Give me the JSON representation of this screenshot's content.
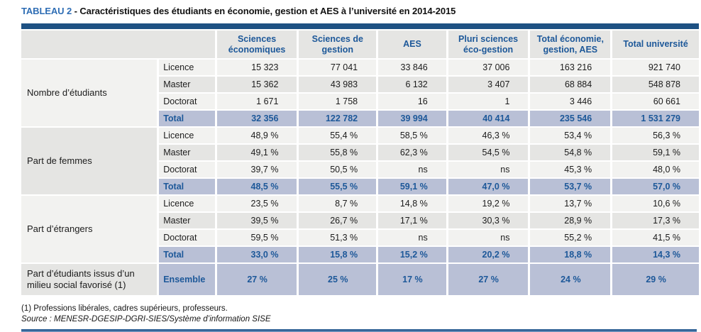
{
  "title": {
    "label": "TABLEAU 2",
    "text": "- Caractéristiques des étudiants en économie, gestion et AES à l’université en 2014-2015"
  },
  "table": {
    "column_headers": [
      "Sciences économiques",
      "Sciences de gestion",
      "AES",
      "Pluri sciences éco-gestion",
      "Total économie, gestion, AES",
      "Total université"
    ],
    "groups": [
      {
        "label": "Nombre d’étudiants",
        "rows": [
          {
            "label": "Licence",
            "total": false,
            "values": [
              "15 323",
              "77 041",
              "33 846",
              "37 006",
              "163 216",
              "921 740"
            ]
          },
          {
            "label": "Master",
            "total": false,
            "values": [
              "15 362",
              "43 983",
              "6 132",
              "3 407",
              "68 884",
              "548 878"
            ]
          },
          {
            "label": "Doctorat",
            "total": false,
            "values": [
              "1 671",
              "1 758",
              "16",
              "1",
              "3 446",
              "60 661"
            ]
          },
          {
            "label": "Total",
            "total": true,
            "values": [
              "32 356",
              "122 782",
              "39 994",
              "40 414",
              "235 546",
              "1 531 279"
            ]
          }
        ]
      },
      {
        "label": "Part de femmes",
        "rows": [
          {
            "label": "Licence",
            "total": false,
            "values": [
              "48,9 %",
              "55,4 %",
              "58,5 %",
              "46,3 %",
              "53,4 %",
              "56,3 %"
            ]
          },
          {
            "label": "Master",
            "total": false,
            "values": [
              "49,1 %",
              "55,8 %",
              "62,3 %",
              "54,5 %",
              "54,8 %",
              "59,1 %"
            ]
          },
          {
            "label": "Doctorat",
            "total": false,
            "values": [
              "39,7 %",
              "50,5 %",
              "ns",
              "ns",
              "45,3 %",
              "48,0 %"
            ]
          },
          {
            "label": "Total",
            "total": true,
            "values": [
              "48,5 %",
              "55,5 %",
              "59,1 %",
              "47,0 %",
              "53,7 %",
              "57,0 %"
            ]
          }
        ]
      },
      {
        "label": "Part d’étrangers",
        "rows": [
          {
            "label": "Licence",
            "total": false,
            "values": [
              "23,5 %",
              "8,7 %",
              "14,8 %",
              "19,2 %",
              "13,7 %",
              "10,6 %"
            ]
          },
          {
            "label": "Master",
            "total": false,
            "values": [
              "39,5 %",
              "26,7 %",
              "17,1 %",
              "30,3 %",
              "28,9 %",
              "17,3 %"
            ]
          },
          {
            "label": "Doctorat",
            "total": false,
            "values": [
              "59,5 %",
              "51,3 %",
              "ns",
              "ns",
              "55,2 %",
              "41,5 %"
            ]
          },
          {
            "label": "Total",
            "total": true,
            "values": [
              "33,0 %",
              "15,8 %",
              "15,2 %",
              "20,2 %",
              "18,8 %",
              "14,3 %"
            ]
          }
        ]
      },
      {
        "label": "Part d’étudiants issus d’un milieu social favorisé (1)",
        "rows": [
          {
            "label": "Ensemble",
            "total": true,
            "values": [
              "27 %",
              "25 %",
              "17 %",
              "27 %",
              "24 %",
              "29 %"
            ]
          }
        ]
      }
    ]
  },
  "footnotes": {
    "note1": "(1) Professions libérales, cadres supérieurs, professeurs.",
    "source": "Source : MENESR-DGESIP-DGRI-SIES/Système d’information SISE"
  },
  "colors": {
    "navy_bar": "#1e5183",
    "header_text_blue": "#1d5899",
    "title_blue": "#2e6db4",
    "total_row_bg": "#b9c0d6",
    "cell_gray": "#e5e5e3",
    "cell_light": "#f2f2f0"
  }
}
